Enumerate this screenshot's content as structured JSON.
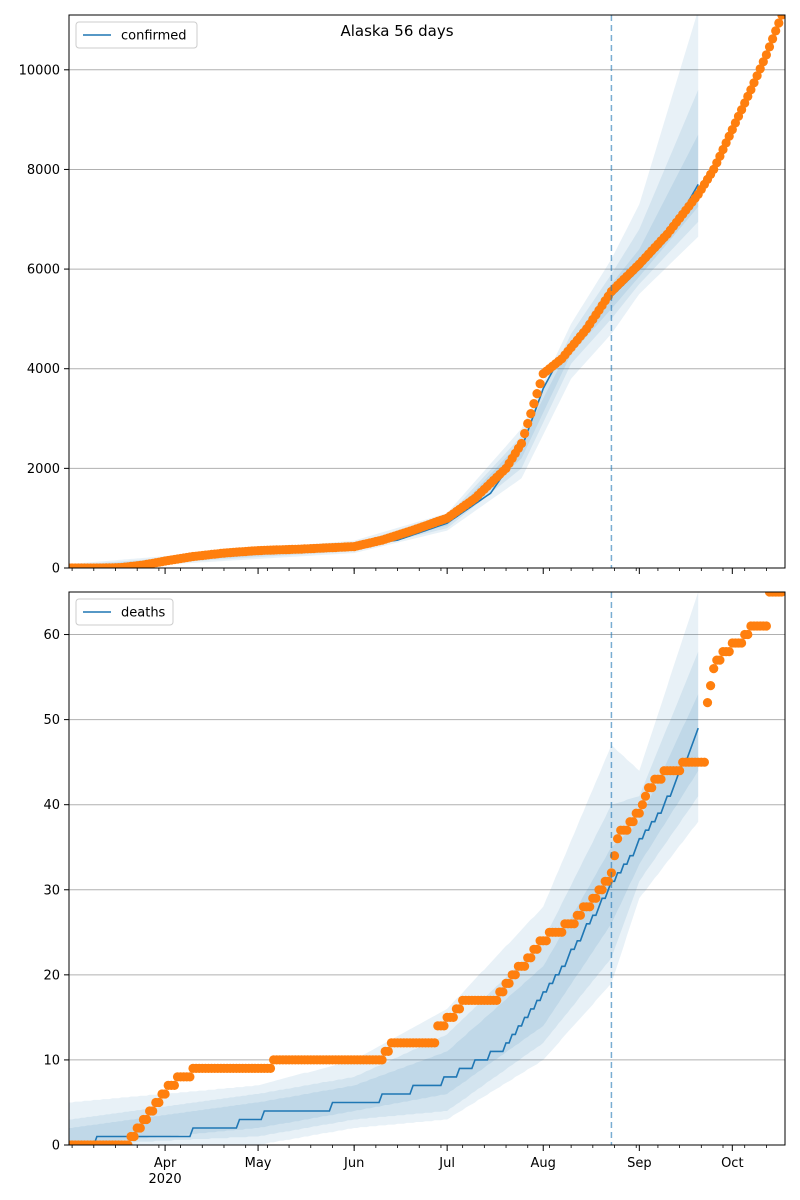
{
  "figure": {
    "title": "Alaska 56 days"
  },
  "chart_data": [
    {
      "type": "line",
      "legend": {
        "label": "confirmed",
        "placement": "top-left"
      },
      "ylim": [
        0,
        11100
      ],
      "yticks": [
        0,
        2000,
        4000,
        6000,
        8000,
        10000
      ],
      "x_axis": {
        "range": [
          "2020-03-01",
          "2020-10-18"
        ],
        "month_ticks": [
          {
            "date": "2020-04-01",
            "label": "Apr"
          },
          {
            "date": "2020-05-01",
            "label": "May"
          },
          {
            "date": "2020-06-01",
            "label": "Jun"
          },
          {
            "date": "2020-07-01",
            "label": "Jul"
          },
          {
            "date": "2020-08-01",
            "label": "Aug"
          },
          {
            "date": "2020-09-01",
            "label": "Sep"
          },
          {
            "date": "2020-10-01",
            "label": "Oct"
          }
        ],
        "year_label": "2020",
        "show_tick_labels": false
      },
      "grid": "horizontal",
      "forecast_start": "2020-08-23",
      "model_line": [
        [
          "2020-03-01",
          0
        ],
        [
          "2020-03-20",
          30
        ],
        [
          "2020-04-01",
          150
        ],
        [
          "2020-04-15",
          290
        ],
        [
          "2020-05-01",
          360
        ],
        [
          "2020-05-15",
          390
        ],
        [
          "2020-06-01",
          430
        ],
        [
          "2020-06-15",
          560
        ],
        [
          "2020-07-01",
          900
        ],
        [
          "2020-07-15",
          1500
        ],
        [
          "2020-07-25",
          2400
        ],
        [
          "2020-08-01",
          3600
        ],
        [
          "2020-08-07",
          4300
        ],
        [
          "2020-08-15",
          4800
        ],
        [
          "2020-08-23",
          5450
        ],
        [
          "2020-09-01",
          6000
        ],
        [
          "2020-09-10",
          6600
        ],
        [
          "2020-09-20",
          7700
        ]
      ],
      "bands": [
        {
          "lower": [
            [
              "2020-03-01",
              -50
            ],
            [
              "2020-06-01",
              300
            ],
            [
              "2020-07-01",
              750
            ],
            [
              "2020-07-25",
              1800
            ],
            [
              "2020-08-10",
              3800
            ],
            [
              "2020-08-23",
              4700
            ],
            [
              "2020-09-01",
              5500
            ],
            [
              "2020-09-20",
              6650
            ]
          ],
          "upper": [
            [
              "2020-03-01",
              80
            ],
            [
              "2020-06-01",
              550
            ],
            [
              "2020-07-01",
              1100
            ],
            [
              "2020-07-25",
              2800
            ],
            [
              "2020-08-10",
              4900
            ],
            [
              "2020-08-23",
              6200
            ],
            [
              "2020-09-01",
              7300
            ],
            [
              "2020-09-20",
              11200
            ]
          ]
        },
        {
          "lower": [
            [
              "2020-03-01",
              -20
            ],
            [
              "2020-06-01",
              340
            ],
            [
              "2020-07-01",
              800
            ],
            [
              "2020-07-25",
              2000
            ],
            [
              "2020-08-10",
              4100
            ],
            [
              "2020-08-23",
              5000
            ],
            [
              "2020-09-01",
              5700
            ],
            [
              "2020-09-20",
              6950
            ]
          ],
          "upper": [
            [
              "2020-03-01",
              50
            ],
            [
              "2020-06-01",
              500
            ],
            [
              "2020-07-01",
              1030
            ],
            [
              "2020-07-25",
              2650
            ],
            [
              "2020-08-10",
              4700
            ],
            [
              "2020-08-23",
              5900
            ],
            [
              "2020-09-01",
              6800
            ],
            [
              "2020-09-20",
              9600
            ]
          ]
        },
        {
          "lower": [
            [
              "2020-03-01",
              -5
            ],
            [
              "2020-06-01",
              380
            ],
            [
              "2020-07-01",
              850
            ],
            [
              "2020-07-25",
              2200
            ],
            [
              "2020-08-10",
              4300
            ],
            [
              "2020-08-23",
              5200
            ],
            [
              "2020-09-01",
              5850
            ],
            [
              "2020-09-20",
              7250
            ]
          ],
          "upper": [
            [
              "2020-03-01",
              30
            ],
            [
              "2020-06-01",
              470
            ],
            [
              "2020-07-01",
              960
            ],
            [
              "2020-07-25",
              2550
            ],
            [
              "2020-08-10",
              4500
            ],
            [
              "2020-08-23",
              5700
            ],
            [
              "2020-09-01",
              6400
            ],
            [
              "2020-09-20",
              8700
            ]
          ]
        }
      ],
      "observed_anchors": [
        [
          "2020-03-01",
          0
        ],
        [
          "2020-03-12",
          0
        ],
        [
          "2020-03-18",
          10
        ],
        [
          "2020-03-25",
          60
        ],
        [
          "2020-04-01",
          140
        ],
        [
          "2020-04-10",
          230
        ],
        [
          "2020-04-20",
          300
        ],
        [
          "2020-05-01",
          350
        ],
        [
          "2020-05-15",
          380
        ],
        [
          "2020-06-01",
          430
        ],
        [
          "2020-06-10",
          560
        ],
        [
          "2020-06-20",
          760
        ],
        [
          "2020-07-01",
          1000
        ],
        [
          "2020-07-10",
          1400
        ],
        [
          "2020-07-20",
          2000
        ],
        [
          "2020-07-25",
          2500
        ],
        [
          "2020-08-01",
          3900
        ],
        [
          "2020-08-07",
          4200
        ],
        [
          "2020-08-15",
          4800
        ],
        [
          "2020-08-23",
          5550
        ],
        [
          "2020-09-01",
          6100
        ],
        [
          "2020-09-10",
          6700
        ],
        [
          "2020-09-20",
          7500
        ],
        [
          "2020-09-25",
          8000
        ],
        [
          "2020-10-01",
          8800
        ],
        [
          "2020-10-07",
          9600
        ],
        [
          "2020-10-12",
          10300
        ],
        [
          "2020-10-17",
          11100
        ]
      ],
      "observed_step": "step"
    },
    {
      "type": "line",
      "legend": {
        "label": "deaths",
        "placement": "top-left"
      },
      "ylim": [
        0,
        65
      ],
      "yticks": [
        0,
        10,
        20,
        30,
        40,
        50,
        60
      ],
      "x_axis": {
        "range": [
          "2020-03-01",
          "2020-10-18"
        ],
        "month_ticks": [
          {
            "date": "2020-04-01",
            "label": "Apr"
          },
          {
            "date": "2020-05-01",
            "label": "May"
          },
          {
            "date": "2020-06-01",
            "label": "Jun"
          },
          {
            "date": "2020-07-01",
            "label": "Jul"
          },
          {
            "date": "2020-08-01",
            "label": "Aug"
          },
          {
            "date": "2020-09-01",
            "label": "Sep"
          },
          {
            "date": "2020-10-01",
            "label": "Oct"
          }
        ],
        "year_label": "2020",
        "show_tick_labels": true
      },
      "grid": "horizontal",
      "forecast_start": "2020-08-23",
      "model_line": [
        [
          "2020-03-01",
          0
        ],
        [
          "2020-03-10",
          1
        ],
        [
          "2020-04-10",
          2
        ],
        [
          "2020-04-25",
          3
        ],
        [
          "2020-05-03",
          4
        ],
        [
          "2020-05-25",
          5
        ],
        [
          "2020-06-10",
          6
        ],
        [
          "2020-06-20",
          7
        ],
        [
          "2020-06-30",
          8
        ],
        [
          "2020-07-10",
          10
        ],
        [
          "2020-07-20",
          12
        ],
        [
          "2020-08-01",
          18
        ],
        [
          "2020-08-10",
          23
        ],
        [
          "2020-08-23",
          31
        ],
        [
          "2020-09-01",
          36
        ],
        [
          "2020-09-10",
          41
        ],
        [
          "2020-09-20",
          49
        ]
      ],
      "bands": [
        {
          "lower": [
            [
              "2020-03-01",
              0
            ],
            [
              "2020-05-01",
              0
            ],
            [
              "2020-06-01",
              2
            ],
            [
              "2020-07-01",
              3
            ],
            [
              "2020-08-01",
              10
            ],
            [
              "2020-08-23",
              19
            ],
            [
              "2020-09-01",
              29
            ],
            [
              "2020-09-20",
              38
            ]
          ],
          "upper": [
            [
              "2020-03-01",
              5
            ],
            [
              "2020-05-01",
              7
            ],
            [
              "2020-06-01",
              10
            ],
            [
              "2020-07-01",
              16
            ],
            [
              "2020-08-01",
              28
            ],
            [
              "2020-08-23",
              47
            ],
            [
              "2020-09-01",
              44
            ],
            [
              "2020-09-20",
              65
            ]
          ]
        },
        {
          "lower": [
            [
              "2020-03-01",
              0
            ],
            [
              "2020-05-01",
              1
            ],
            [
              "2020-06-01",
              3
            ],
            [
              "2020-07-01",
              4
            ],
            [
              "2020-08-01",
              12
            ],
            [
              "2020-08-23",
              22
            ],
            [
              "2020-09-01",
              31
            ],
            [
              "2020-09-20",
              41
            ]
          ],
          "upper": [
            [
              "2020-03-01",
              3
            ],
            [
              "2020-05-01",
              6
            ],
            [
              "2020-06-01",
              8
            ],
            [
              "2020-07-01",
              13
            ],
            [
              "2020-08-01",
              24
            ],
            [
              "2020-08-23",
              40
            ],
            [
              "2020-09-01",
              41
            ],
            [
              "2020-09-20",
              58
            ]
          ]
        },
        {
          "lower": [
            [
              "2020-03-01",
              0
            ],
            [
              "2020-05-01",
              2
            ],
            [
              "2020-06-01",
              4
            ],
            [
              "2020-07-01",
              6
            ],
            [
              "2020-08-01",
              14
            ],
            [
              "2020-08-23",
              26
            ],
            [
              "2020-09-01",
              33
            ],
            [
              "2020-09-20",
              44
            ]
          ],
          "upper": [
            [
              "2020-03-01",
              2
            ],
            [
              "2020-05-01",
              5
            ],
            [
              "2020-06-01",
              7
            ],
            [
              "2020-07-01",
              11
            ],
            [
              "2020-08-01",
              21
            ],
            [
              "2020-08-23",
              35
            ],
            [
              "2020-09-01",
              38
            ],
            [
              "2020-09-20",
              53
            ]
          ]
        }
      ],
      "observed_anchors": [
        [
          "2020-03-01",
          0
        ],
        [
          "2020-03-20",
          0
        ],
        [
          "2020-03-21",
          1
        ],
        [
          "2020-03-24",
          2
        ],
        [
          "2020-03-26",
          3
        ],
        [
          "2020-03-30",
          5
        ],
        [
          "2020-04-02",
          7
        ],
        [
          "2020-04-07",
          8
        ],
        [
          "2020-04-12",
          9
        ],
        [
          "2020-05-05",
          9
        ],
        [
          "2020-05-06",
          10
        ],
        [
          "2020-06-10",
          10
        ],
        [
          "2020-06-11",
          11
        ],
        [
          "2020-06-15",
          12
        ],
        [
          "2020-06-27",
          12
        ],
        [
          "2020-06-28",
          14
        ],
        [
          "2020-07-03",
          15
        ],
        [
          "2020-07-06",
          17
        ],
        [
          "2020-07-17",
          17
        ],
        [
          "2020-07-18",
          18
        ],
        [
          "2020-07-21",
          19
        ],
        [
          "2020-07-25",
          21
        ],
        [
          "2020-08-01",
          24
        ],
        [
          "2020-08-05",
          25
        ],
        [
          "2020-08-10",
          26
        ],
        [
          "2020-08-15",
          28
        ],
        [
          "2020-08-20",
          30
        ],
        [
          "2020-08-23",
          32
        ],
        [
          "2020-08-25",
          36
        ],
        [
          "2020-08-27",
          37
        ],
        [
          "2020-09-01",
          39
        ],
        [
          "2020-09-04",
          42
        ],
        [
          "2020-09-10",
          44
        ],
        [
          "2020-09-14",
          44
        ],
        [
          "2020-09-15",
          45
        ],
        [
          "2020-09-22",
          45
        ],
        [
          "2020-09-23",
          52
        ],
        [
          "2020-09-25",
          56
        ],
        [
          "2020-09-28",
          58
        ],
        [
          "2020-10-03",
          59
        ],
        [
          "2020-10-08",
          61
        ],
        [
          "2020-10-12",
          61
        ],
        [
          "2020-10-13",
          65
        ],
        [
          "2020-10-17",
          65
        ]
      ],
      "observed_step": "step"
    }
  ]
}
